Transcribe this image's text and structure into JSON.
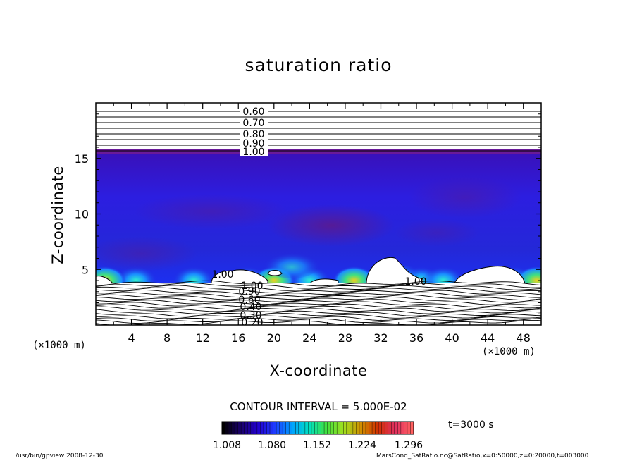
{
  "chart_data": {
    "type": "heatmap",
    "title": "saturation ratio",
    "xlabel": "X-coordinate",
    "ylabel": "Z-coordinate",
    "x_unit": "(×1000 m)",
    "y_unit": "(×1000 m)",
    "xlim": [
      0,
      50
    ],
    "ylim": [
      0,
      20
    ],
    "x_ticks": [
      4,
      8,
      12,
      16,
      20,
      24,
      28,
      32,
      36,
      40,
      44,
      48
    ],
    "y_ticks": [
      5,
      10,
      15
    ],
    "contour_labels": [
      "0.60",
      "0.70",
      "0.80",
      "0.90",
      "1.00",
      "1.00",
      "0.90",
      "0.60",
      "0.40",
      "0.30",
      "0.20",
      "1.00",
      "1.00"
    ],
    "upper_contour_levels": [
      0.6,
      0.7,
      0.8,
      0.9,
      1.0
    ],
    "contour_interval": "CONTOUR INTERVAL = 5.000E-02",
    "colorbar": {
      "ticks": [
        "1.008",
        "1.080",
        "1.152",
        "1.224",
        "1.296"
      ],
      "min": 1.008,
      "max": 1.296,
      "colors": [
        "#000000",
        "#1a006a",
        "#2200cc",
        "#1e3cff",
        "#00a0ff",
        "#00e0c0",
        "#40e040",
        "#a0e020",
        "#d09000",
        "#d03000",
        "#e03060",
        "#ff6060"
      ]
    },
    "time_label": "t=3000 s"
  },
  "footer": {
    "left": "/usr/bin/gpview   2008-12-30",
    "right": "MarsCond_SatRatio.nc@SatRatio,x=0:50000,z=0:20000,t=003000"
  }
}
